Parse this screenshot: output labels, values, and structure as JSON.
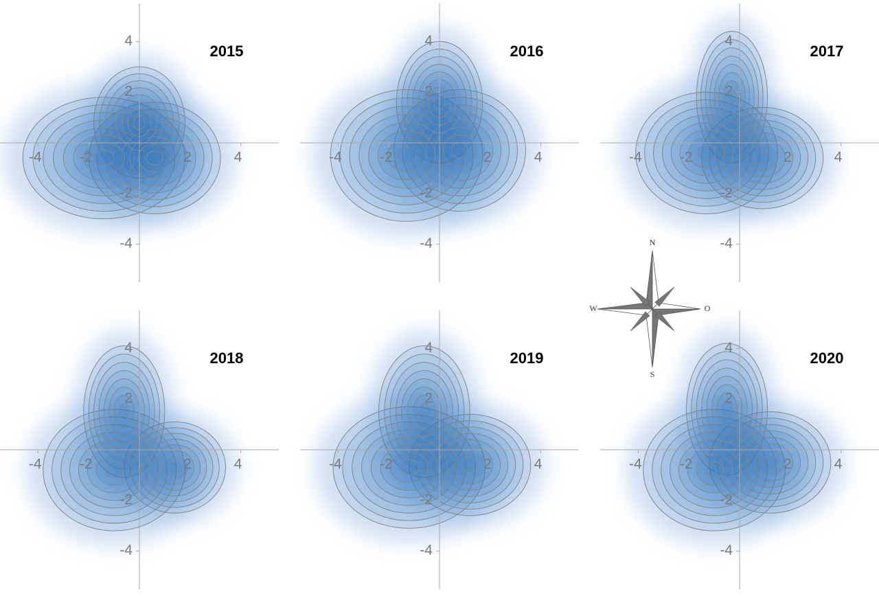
{
  "chart_data": [
    {
      "type": "contour",
      "title": "2015",
      "xlim": [
        -5.5,
        5.5
      ],
      "ylim": [
        -5.5,
        5.5
      ],
      "xticks": [
        -4,
        -2,
        2,
        4
      ],
      "yticks": [
        -4,
        -2,
        2,
        4
      ]
    },
    {
      "type": "contour",
      "title": "2016",
      "xlim": [
        -5.5,
        5.5
      ],
      "ylim": [
        -5.5,
        5.5
      ],
      "xticks": [
        -4,
        -2,
        2,
        4
      ],
      "yticks": [
        -4,
        -2,
        2,
        4
      ]
    },
    {
      "type": "contour",
      "title": "2017",
      "xlim": [
        -5.5,
        5.5
      ],
      "ylim": [
        -5.5,
        5.5
      ],
      "xticks": [
        -4,
        -2,
        2,
        4
      ],
      "yticks": [
        -4,
        -2,
        2,
        4
      ]
    },
    {
      "type": "contour",
      "title": "2018",
      "xlim": [
        -5.5,
        5.5
      ],
      "ylim": [
        -5.5,
        5.5
      ],
      "xticks": [
        -4,
        -2,
        2,
        4
      ],
      "yticks": [
        -4,
        -2,
        2,
        4
      ]
    },
    {
      "type": "contour",
      "title": "2019",
      "xlim": [
        -5.5,
        5.5
      ],
      "ylim": [
        -5.5,
        5.5
      ],
      "xticks": [
        -4,
        -2,
        2,
        4
      ],
      "yticks": [
        -4,
        -2,
        2,
        4
      ]
    },
    {
      "type": "contour",
      "title": "2020",
      "xlim": [
        -5.5,
        5.5
      ],
      "ylim": [
        -5.5,
        5.5
      ],
      "xticks": [
        -4,
        -2,
        2,
        4
      ],
      "yticks": [
        -4,
        -2,
        2,
        4
      ]
    }
  ],
  "compass": {
    "north": "N",
    "south": "S",
    "west": "W",
    "east": "O"
  }
}
